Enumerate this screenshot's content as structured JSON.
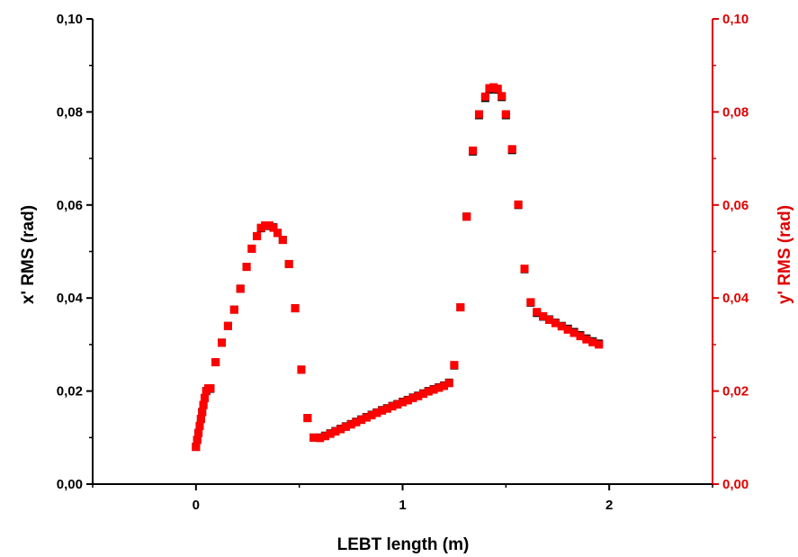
{
  "chart_data": {
    "type": "scatter",
    "title": "",
    "xlabel": "LEBT length (m)",
    "ylabel_left": "x' RMS (rad)",
    "ylabel_right": "y' RMS (rad)",
    "xlim": [
      -0.5,
      2.5
    ],
    "ylim": [
      0.0,
      0.1
    ],
    "x_ticks": [
      0,
      1,
      2
    ],
    "x_tick_labels": [
      "0",
      "1",
      "2"
    ],
    "y_ticks": [
      0.0,
      0.02,
      0.04,
      0.06,
      0.08,
      0.1
    ],
    "y_tick_labels": [
      "0,00",
      "0,02",
      "0,04",
      "0,06",
      "0,08",
      "0,10"
    ],
    "grid": false,
    "legend": "none",
    "colors": {
      "x_series": "#000000",
      "y_series": "#ff0000",
      "left_axis": "#000000",
      "right_axis": "#e00000"
    },
    "series": [
      {
        "axis": "left",
        "marker": "square",
        "color": "#000000",
        "x": [
          0.0,
          0.006,
          0.012,
          0.018,
          0.024,
          0.03,
          0.036,
          0.042,
          0.05,
          0.06,
          0.07,
          0.095,
          0.125,
          0.155,
          0.185,
          0.215,
          0.245,
          0.27,
          0.295,
          0.315,
          0.335,
          0.355,
          0.375,
          0.395,
          0.42,
          0.45,
          0.48,
          0.51,
          0.54,
          0.57,
          0.6,
          0.625,
          0.65,
          0.675,
          0.7,
          0.725,
          0.75,
          0.775,
          0.8,
          0.825,
          0.85,
          0.875,
          0.9,
          0.925,
          0.95,
          0.975,
          1.0,
          1.025,
          1.05,
          1.075,
          1.1,
          1.125,
          1.15,
          1.175,
          1.2,
          1.225,
          1.25,
          1.28,
          1.31,
          1.34,
          1.37,
          1.4,
          1.42,
          1.44,
          1.46,
          1.48,
          1.5,
          1.53,
          1.56,
          1.59,
          1.62,
          1.65,
          1.68,
          1.71,
          1.74,
          1.77,
          1.8,
          1.83,
          1.86,
          1.89,
          1.92,
          1.95
        ],
        "y": [
          0.008,
          0.0095,
          0.011,
          0.0125,
          0.014,
          0.0155,
          0.017,
          0.0185,
          0.02,
          0.0205,
          0.0205,
          0.0262,
          0.0304,
          0.034,
          0.0375,
          0.042,
          0.0467,
          0.0506,
          0.0533,
          0.055,
          0.0555,
          0.0555,
          0.0552,
          0.054,
          0.0525,
          0.0473,
          0.0378,
          0.0246,
          0.0142,
          0.01,
          0.01,
          0.0104,
          0.0109,
          0.0114,
          0.0119,
          0.0124,
          0.0129,
          0.0134,
          0.0139,
          0.0144,
          0.0149,
          0.0154,
          0.0159,
          0.0163,
          0.0168,
          0.0172,
          0.0177,
          0.0181,
          0.0186,
          0.019,
          0.0195,
          0.02,
          0.0204,
          0.0208,
          0.0212,
          0.0218,
          0.0255,
          0.038,
          0.0575,
          0.0715,
          0.0793,
          0.083,
          0.0848,
          0.0852,
          0.0848,
          0.0832,
          0.0793,
          0.0718,
          0.06,
          0.0462,
          0.039,
          0.0368,
          0.036,
          0.0354,
          0.0347,
          0.034,
          0.0334,
          0.0327,
          0.032,
          0.0313,
          0.0307,
          0.0302
        ]
      },
      {
        "axis": "right",
        "marker": "square",
        "color": "#ff0000",
        "x": [
          0.0,
          0.006,
          0.012,
          0.018,
          0.024,
          0.03,
          0.036,
          0.042,
          0.05,
          0.06,
          0.07,
          0.095,
          0.125,
          0.155,
          0.185,
          0.215,
          0.245,
          0.27,
          0.295,
          0.315,
          0.335,
          0.355,
          0.375,
          0.395,
          0.42,
          0.45,
          0.48,
          0.51,
          0.54,
          0.57,
          0.6,
          0.625,
          0.65,
          0.675,
          0.7,
          0.725,
          0.75,
          0.775,
          0.8,
          0.825,
          0.85,
          0.875,
          0.9,
          0.925,
          0.95,
          0.975,
          1.0,
          1.025,
          1.05,
          1.075,
          1.1,
          1.125,
          1.15,
          1.175,
          1.2,
          1.225,
          1.25,
          1.28,
          1.31,
          1.34,
          1.37,
          1.4,
          1.42,
          1.44,
          1.46,
          1.48,
          1.5,
          1.53,
          1.56,
          1.59,
          1.62,
          1.65,
          1.68,
          1.71,
          1.74,
          1.77,
          1.8,
          1.83,
          1.86,
          1.89,
          1.92,
          1.95
        ],
        "y": [
          0.008,
          0.0095,
          0.011,
          0.0125,
          0.014,
          0.0155,
          0.017,
          0.0185,
          0.02,
          0.0206,
          0.0206,
          0.0262,
          0.0304,
          0.034,
          0.0375,
          0.042,
          0.0467,
          0.0506,
          0.0533,
          0.0551,
          0.0556,
          0.0556,
          0.0551,
          0.054,
          0.0525,
          0.0473,
          0.0378,
          0.0246,
          0.0142,
          0.01,
          0.0099,
          0.0103,
          0.0108,
          0.0113,
          0.0118,
          0.0123,
          0.0128,
          0.0133,
          0.0138,
          0.0143,
          0.0148,
          0.0153,
          0.0158,
          0.0162,
          0.0167,
          0.0171,
          0.0176,
          0.018,
          0.0185,
          0.0189,
          0.0194,
          0.0199,
          0.0203,
          0.0207,
          0.0211,
          0.0217,
          0.0256,
          0.038,
          0.0575,
          0.0717,
          0.0795,
          0.0833,
          0.0851,
          0.0853,
          0.085,
          0.0834,
          0.0795,
          0.072,
          0.0601,
          0.0463,
          0.0391,
          0.037,
          0.0361,
          0.0353,
          0.0346,
          0.0339,
          0.0332,
          0.0325,
          0.0318,
          0.0311,
          0.0305,
          0.03
        ]
      }
    ]
  }
}
